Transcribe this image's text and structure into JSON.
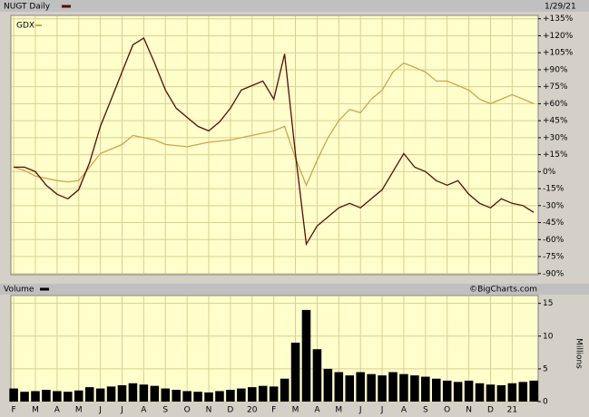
{
  "chart_data": [
    {
      "type": "line",
      "date": "1/29/21",
      "x": [
        1,
        1.5,
        2,
        2.5,
        3,
        3.5,
        4,
        4.5,
        5,
        5.5,
        6,
        6.5,
        7,
        7.5,
        8,
        8.5,
        9,
        9.5,
        10,
        10.5,
        11,
        11.5,
        12,
        12.5,
        13,
        13.5,
        14,
        14.5,
        15,
        15.5,
        16,
        16.5,
        17,
        17.5,
        18,
        18.5,
        19,
        19.5,
        20,
        20.5,
        21,
        21.5,
        22,
        22.5,
        23,
        23.5,
        24,
        24.5,
        25
      ],
      "series": [
        {
          "name": "NUGT Daily",
          "color": "#5a0a0a",
          "values": [
            4,
            4,
            0,
            -12,
            -20,
            -24,
            -16,
            8,
            40,
            64,
            88,
            112,
            118,
            96,
            72,
            56,
            48,
            40,
            36,
            44,
            56,
            72,
            76,
            80,
            64,
            104,
            16,
            -64,
            -48,
            -40,
            -32,
            -28,
            -32,
            -24,
            -16,
            0,
            16,
            4,
            0,
            -8,
            -12,
            -8,
            -20,
            -28,
            -32,
            -24,
            -28,
            -30,
            -36
          ]
        },
        {
          "name": "GDX",
          "color": "#d4a24a",
          "values": [
            4,
            1,
            -4,
            -6,
            -8,
            -9,
            -8,
            4,
            16,
            20,
            24,
            32,
            30,
            28,
            24,
            23,
            22,
            24,
            26,
            27,
            28,
            30,
            32,
            34,
            36,
            40,
            12,
            -12,
            10,
            30,
            45,
            55,
            52,
            64,
            72,
            88,
            96,
            92,
            88,
            80,
            80,
            76,
            72,
            64,
            60,
            64,
            68,
            64,
            60
          ]
        }
      ],
      "xlim": [
        0.87,
        25.2
      ],
      "ylim": [
        -91,
        138
      ],
      "yticks": [
        {
          "value": 135,
          "label": "+135%"
        },
        {
          "value": 120,
          "label": "+120%"
        },
        {
          "value": 105,
          "label": "+105%"
        },
        {
          "value": 90,
          "label": "+90%"
        },
        {
          "value": 75,
          "label": "+75%"
        },
        {
          "value": 60,
          "label": "+60%"
        },
        {
          "value": 45,
          "label": "+45%"
        },
        {
          "value": 30,
          "label": "+30%"
        },
        {
          "value": 15,
          "label": "+15%"
        },
        {
          "value": 0,
          "label": "0%"
        },
        {
          "value": -15,
          "label": "-15%"
        },
        {
          "value": -30,
          "label": "-30%"
        },
        {
          "value": -45,
          "label": "-45%"
        },
        {
          "value": -60,
          "label": "-60%"
        },
        {
          "value": -75,
          "label": "-75%"
        },
        {
          "value": -90,
          "label": "-90%"
        }
      ],
      "grid": true
    },
    {
      "type": "bar",
      "title": "Volume",
      "source": "©BigCharts.com",
      "y_label": "Millions",
      "color": "#000000",
      "x": [
        1,
        1.5,
        2,
        2.5,
        3,
        3.5,
        4,
        4.5,
        5,
        5.5,
        6,
        6.5,
        7,
        7.5,
        8,
        8.5,
        9,
        9.5,
        10,
        10.5,
        11,
        11.5,
        12,
        12.5,
        13,
        13.5,
        14,
        14.5,
        15,
        15.5,
        16,
        16.5,
        17,
        17.5,
        18,
        18.5,
        19,
        19.5,
        20,
        20.5,
        21,
        21.5,
        22,
        22.5,
        23,
        23.5,
        24,
        24.5,
        25
      ],
      "values": [
        2,
        1.5,
        1.6,
        1.8,
        1.6,
        1.5,
        1.7,
        2.2,
        2.0,
        2.3,
        2.5,
        2.8,
        2.6,
        2.4,
        2.0,
        1.8,
        1.6,
        1.5,
        1.4,
        1.6,
        1.8,
        2.0,
        2.2,
        2.4,
        2.3,
        3.5,
        9,
        14,
        8,
        5,
        4.5,
        4,
        4.5,
        4.2,
        4,
        4.5,
        4.2,
        4,
        3.8,
        3.5,
        3.2,
        3,
        3.2,
        2.8,
        2.6,
        2.5,
        2.8,
        3,
        3.2
      ],
      "xlim": [
        0.87,
        25.2
      ],
      "ylim": [
        0,
        16.2
      ],
      "yticks": [
        0,
        5,
        10,
        15
      ],
      "xticks": [
        {
          "value": 1,
          "label": "F"
        },
        {
          "value": 2,
          "label": "M"
        },
        {
          "value": 3,
          "label": "A"
        },
        {
          "value": 4,
          "label": "M"
        },
        {
          "value": 5,
          "label": "J"
        },
        {
          "value": 6,
          "label": "J"
        },
        {
          "value": 7,
          "label": "A"
        },
        {
          "value": 8,
          "label": "S"
        },
        {
          "value": 9,
          "label": "O"
        },
        {
          "value": 10,
          "label": "N"
        },
        {
          "value": 11,
          "label": "D"
        },
        {
          "value": 12,
          "label": "20"
        },
        {
          "value": 13,
          "label": "F"
        },
        {
          "value": 14,
          "label": "M"
        },
        {
          "value": 15,
          "label": "A"
        },
        {
          "value": 16,
          "label": "M"
        },
        {
          "value": 17,
          "label": "J"
        },
        {
          "value": 18,
          "label": "J"
        },
        {
          "value": 19,
          "label": "A"
        },
        {
          "value": 20,
          "label": "S"
        },
        {
          "value": 21,
          "label": "O"
        },
        {
          "value": 22,
          "label": "N"
        },
        {
          "value": 23,
          "label": "D"
        },
        {
          "value": 24,
          "label": "21"
        }
      ],
      "grid": true
    }
  ]
}
